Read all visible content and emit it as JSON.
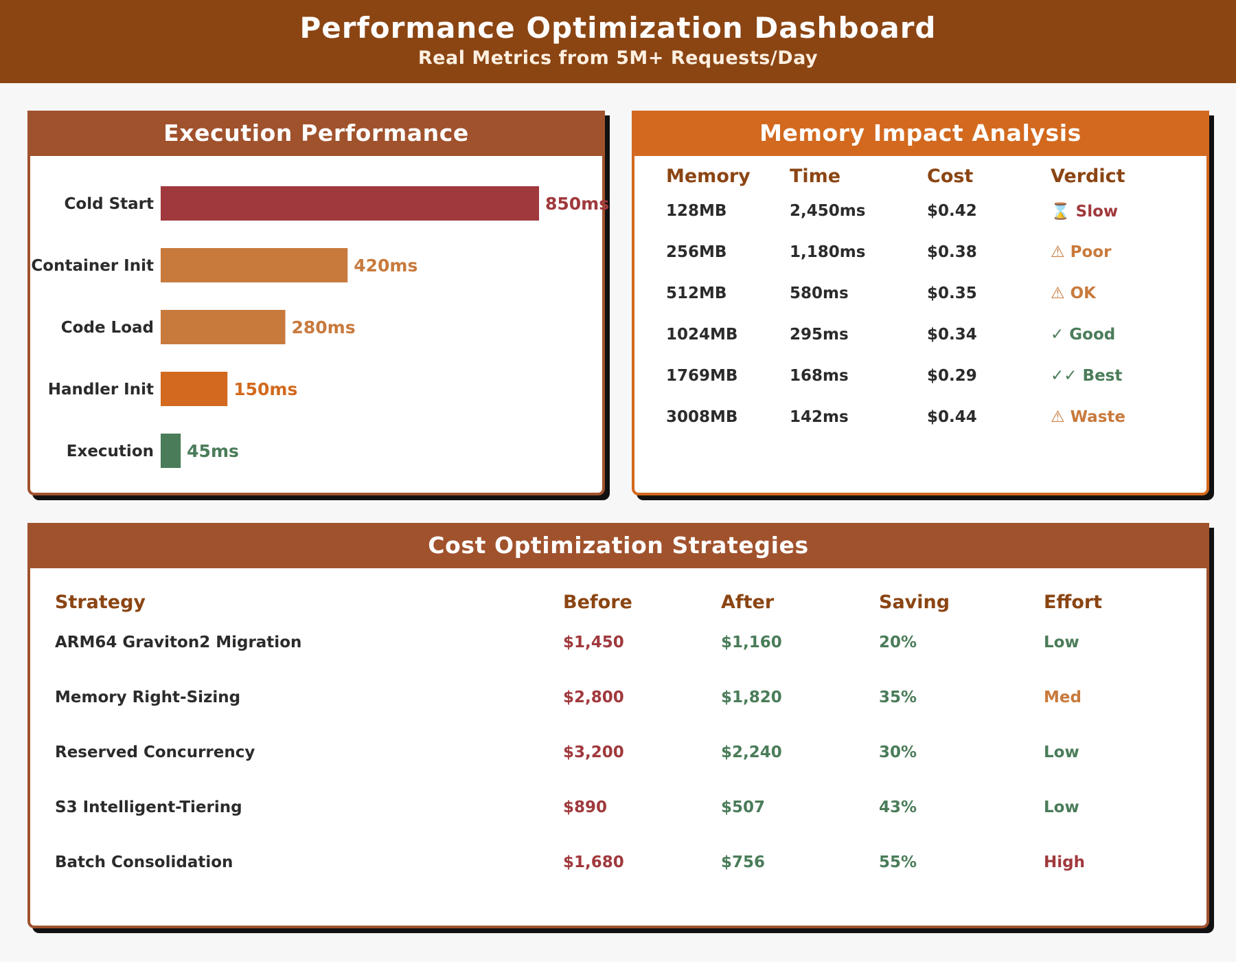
{
  "header": {
    "title": "Performance Optimization Dashboard",
    "subtitle": "Real Metrics from 5M+ Requests/Day"
  },
  "colors": {
    "brown": "#8b4513",
    "sienna": "#a0522d",
    "orange": "#d2691e",
    "tan": "#c87a3d",
    "red": "#a0393d",
    "green": "#4a7c59"
  },
  "exec_panel": {
    "title": "Execution Performance"
  },
  "chart_data": {
    "type": "bar",
    "orientation": "horizontal",
    "title": "Execution Performance",
    "categories": [
      "Cold Start",
      "Container Init",
      "Code Load",
      "Handler Init",
      "Execution"
    ],
    "values": [
      850,
      420,
      280,
      150,
      45
    ],
    "value_labels": [
      "850ms",
      "420ms",
      "280ms",
      "150ms",
      "45ms"
    ],
    "unit": "ms",
    "bar_colors": [
      "#a0393d",
      "#c87a3d",
      "#c87a3d",
      "#d2691e",
      "#4a7c59"
    ],
    "xlim": [
      0,
      850
    ]
  },
  "mem_panel": {
    "title": "Memory Impact Analysis",
    "columns": [
      "Memory",
      "Time",
      "Cost",
      "Verdict"
    ],
    "rows": [
      {
        "memory": "128MB",
        "time": "2,450ms",
        "cost": "$0.42",
        "verdict_icon": "⌛",
        "verdict": "Slow",
        "verdict_color": "red"
      },
      {
        "memory": "256MB",
        "time": "1,180ms",
        "cost": "$0.38",
        "verdict_icon": "⚠",
        "verdict": "Poor",
        "verdict_color": "orange"
      },
      {
        "memory": "512MB",
        "time": "580ms",
        "cost": "$0.35",
        "verdict_icon": "⚠",
        "verdict": "OK",
        "verdict_color": "orange"
      },
      {
        "memory": "1024MB",
        "time": "295ms",
        "cost": "$0.34",
        "verdict_icon": "✓",
        "verdict": "Good",
        "verdict_color": "green"
      },
      {
        "memory": "1769MB",
        "time": "168ms",
        "cost": "$0.29",
        "verdict_icon": "✓✓",
        "verdict": "Best",
        "verdict_color": "green"
      },
      {
        "memory": "3008MB",
        "time": "142ms",
        "cost": "$0.44",
        "verdict_icon": "⚠",
        "verdict": "Waste",
        "verdict_color": "orange"
      }
    ]
  },
  "cost_panel": {
    "title": "Cost Optimization Strategies",
    "columns": [
      "Strategy",
      "Before",
      "After",
      "Saving",
      "Effort"
    ],
    "rows": [
      {
        "strategy": "ARM64 Graviton2 Migration",
        "before": "$1,450",
        "after": "$1,160",
        "saving": "20%",
        "effort": "Low",
        "effort_color": "green"
      },
      {
        "strategy": "Memory Right-Sizing",
        "before": "$2,800",
        "after": "$1,820",
        "saving": "35%",
        "effort": "Med",
        "effort_color": "orange"
      },
      {
        "strategy": "Reserved Concurrency",
        "before": "$3,200",
        "after": "$2,240",
        "saving": "30%",
        "effort": "Low",
        "effort_color": "green"
      },
      {
        "strategy": "S3 Intelligent-Tiering",
        "before": "$890",
        "after": "$507",
        "saving": "43%",
        "effort": "Low",
        "effort_color": "green"
      },
      {
        "strategy": "Batch Consolidation",
        "before": "$1,680",
        "after": "$756",
        "saving": "55%",
        "effort": "High",
        "effort_color": "red"
      }
    ]
  }
}
